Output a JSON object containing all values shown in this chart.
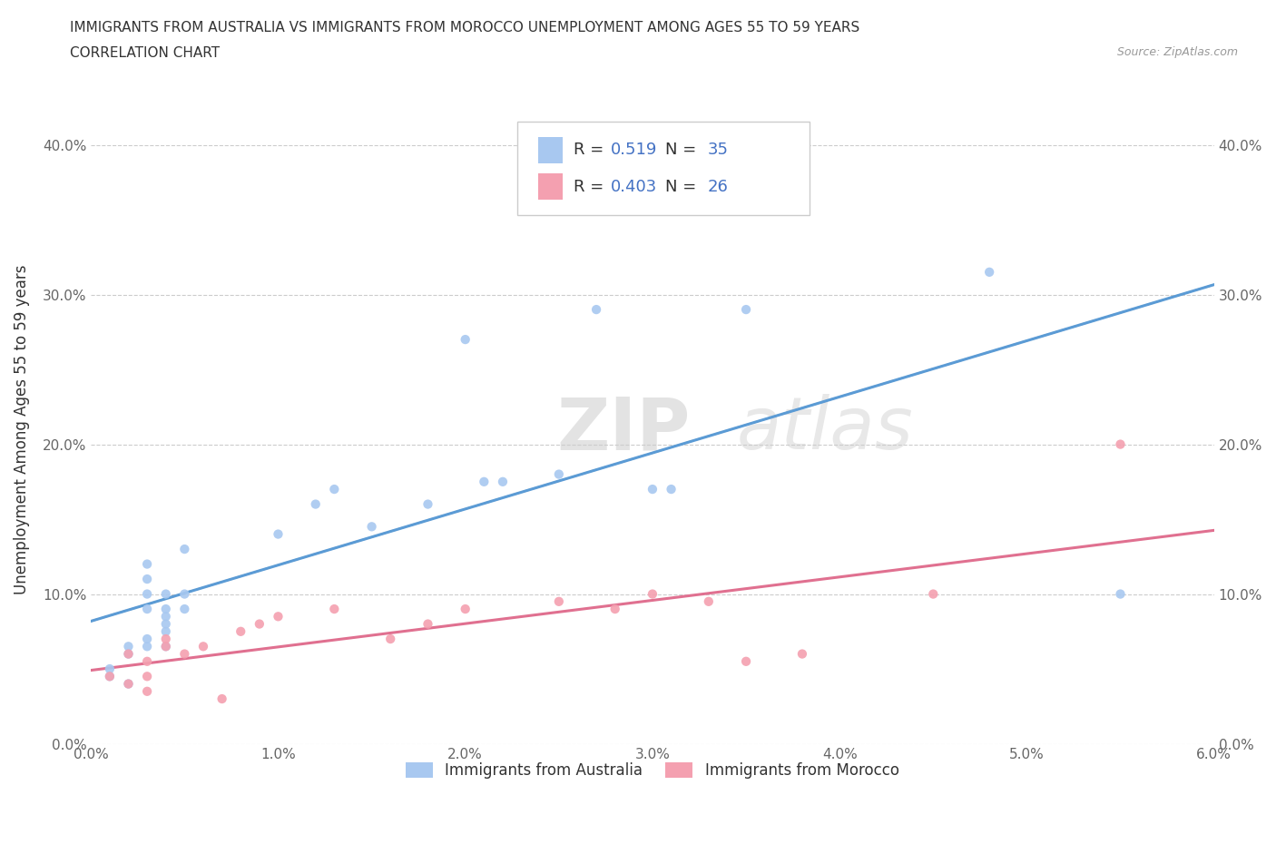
{
  "title_line1": "IMMIGRANTS FROM AUSTRALIA VS IMMIGRANTS FROM MOROCCO UNEMPLOYMENT AMONG AGES 55 TO 59 YEARS",
  "title_line2": "CORRELATION CHART",
  "source_text": "Source: ZipAtlas.com",
  "ylabel": "Unemployment Among Ages 55 to 59 years",
  "xlim": [
    0.0,
    0.06
  ],
  "ylim": [
    0.0,
    0.42
  ],
  "xticks": [
    0.0,
    0.01,
    0.02,
    0.03,
    0.04,
    0.05,
    0.06
  ],
  "yticks": [
    0.0,
    0.1,
    0.2,
    0.3,
    0.4
  ],
  "xtick_labels": [
    "0.0%",
    "1.0%",
    "2.0%",
    "3.0%",
    "4.0%",
    "5.0%",
    "6.0%"
  ],
  "ytick_labels": [
    "0.0%",
    "10.0%",
    "20.0%",
    "30.0%",
    "40.0%"
  ],
  "australia_color": "#a8c8f0",
  "australia_line_color": "#5b9bd5",
  "morocco_color": "#f4a0b0",
  "morocco_line_color": "#e07090",
  "dash_line_color": "#aaaaaa",
  "australia_R": "0.519",
  "australia_N": "35",
  "morocco_R": "0.403",
  "morocco_N": "26",
  "legend_label_australia": "Immigrants from Australia",
  "legend_label_morocco": "Immigrants from Morocco",
  "watermark_zip": "ZIP",
  "watermark_atlas": "atlas",
  "blue_text_color": "#4472c4",
  "grid_color": "#cccccc",
  "title_color": "#333333",
  "tick_color": "#666666",
  "australia_x": [
    0.001,
    0.001,
    0.002,
    0.002,
    0.002,
    0.003,
    0.003,
    0.003,
    0.003,
    0.003,
    0.003,
    0.004,
    0.004,
    0.004,
    0.004,
    0.004,
    0.004,
    0.005,
    0.005,
    0.005,
    0.01,
    0.012,
    0.013,
    0.015,
    0.018,
    0.02,
    0.021,
    0.022,
    0.025,
    0.027,
    0.03,
    0.031,
    0.035,
    0.048,
    0.055
  ],
  "australia_y": [
    0.045,
    0.05,
    0.04,
    0.06,
    0.065,
    0.07,
    0.065,
    0.09,
    0.1,
    0.11,
    0.12,
    0.065,
    0.075,
    0.08,
    0.085,
    0.09,
    0.1,
    0.09,
    0.1,
    0.13,
    0.14,
    0.16,
    0.17,
    0.145,
    0.16,
    0.27,
    0.175,
    0.175,
    0.18,
    0.29,
    0.17,
    0.17,
    0.29,
    0.315,
    0.1
  ],
  "morocco_x": [
    0.001,
    0.002,
    0.002,
    0.003,
    0.003,
    0.003,
    0.004,
    0.004,
    0.005,
    0.006,
    0.007,
    0.008,
    0.009,
    0.01,
    0.013,
    0.016,
    0.018,
    0.02,
    0.025,
    0.028,
    0.03,
    0.033,
    0.035,
    0.038,
    0.045,
    0.055
  ],
  "morocco_y": [
    0.045,
    0.04,
    0.06,
    0.035,
    0.045,
    0.055,
    0.065,
    0.07,
    0.06,
    0.065,
    0.03,
    0.075,
    0.08,
    0.085,
    0.09,
    0.07,
    0.08,
    0.09,
    0.095,
    0.09,
    0.1,
    0.095,
    0.055,
    0.06,
    0.1,
    0.2
  ]
}
